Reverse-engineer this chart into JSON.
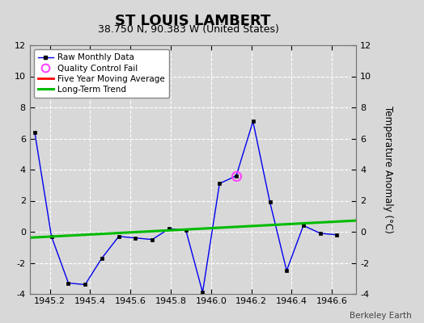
{
  "title": "ST LOUIS LAMBERT",
  "subtitle": "38.750 N, 90.383 W (United States)",
  "credit": "Berkeley Earth",
  "ylabel_right": "Temperature Anomaly (°C)",
  "xlim": [
    1945.1,
    1946.72
  ],
  "ylim": [
    -4,
    12
  ],
  "yticks": [
    -4,
    -2,
    0,
    2,
    4,
    6,
    8,
    10,
    12
  ],
  "xticks": [
    1945.2,
    1945.4,
    1945.6,
    1945.8,
    1946.0,
    1946.2,
    1946.4,
    1946.6
  ],
  "raw_x": [
    1945.125,
    1945.208,
    1945.292,
    1945.375,
    1945.458,
    1945.542,
    1945.625,
    1945.708,
    1945.792,
    1945.875,
    1945.958,
    1946.042,
    1946.125,
    1946.208,
    1946.292,
    1946.375,
    1946.458,
    1946.542,
    1946.625
  ],
  "raw_y": [
    6.4,
    -0.3,
    -3.3,
    -3.4,
    -1.7,
    -0.3,
    -0.4,
    -0.5,
    0.2,
    0.1,
    -3.9,
    3.1,
    3.6,
    7.1,
    1.9,
    -2.5,
    0.4,
    -0.1,
    -0.2
  ],
  "qc_fail_x": [
    1946.125
  ],
  "qc_fail_y": [
    3.6
  ],
  "trend_x": [
    1945.1,
    1946.72
  ],
  "trend_y": [
    -0.38,
    0.72
  ],
  "raw_color": "#0000ee",
  "raw_marker_color": "#000000",
  "trend_color": "#00bb00",
  "moving_avg_color": "#ff0000",
  "qc_color": "#ff44ff",
  "bg_color": "#d8d8d8",
  "plot_bg_color": "#d8d8d8",
  "grid_color": "#ffffff",
  "title_fontsize": 13,
  "subtitle_fontsize": 9,
  "legend_labels": [
    "Raw Monthly Data",
    "Quality Control Fail",
    "Five Year Moving Average",
    "Long-Term Trend"
  ]
}
